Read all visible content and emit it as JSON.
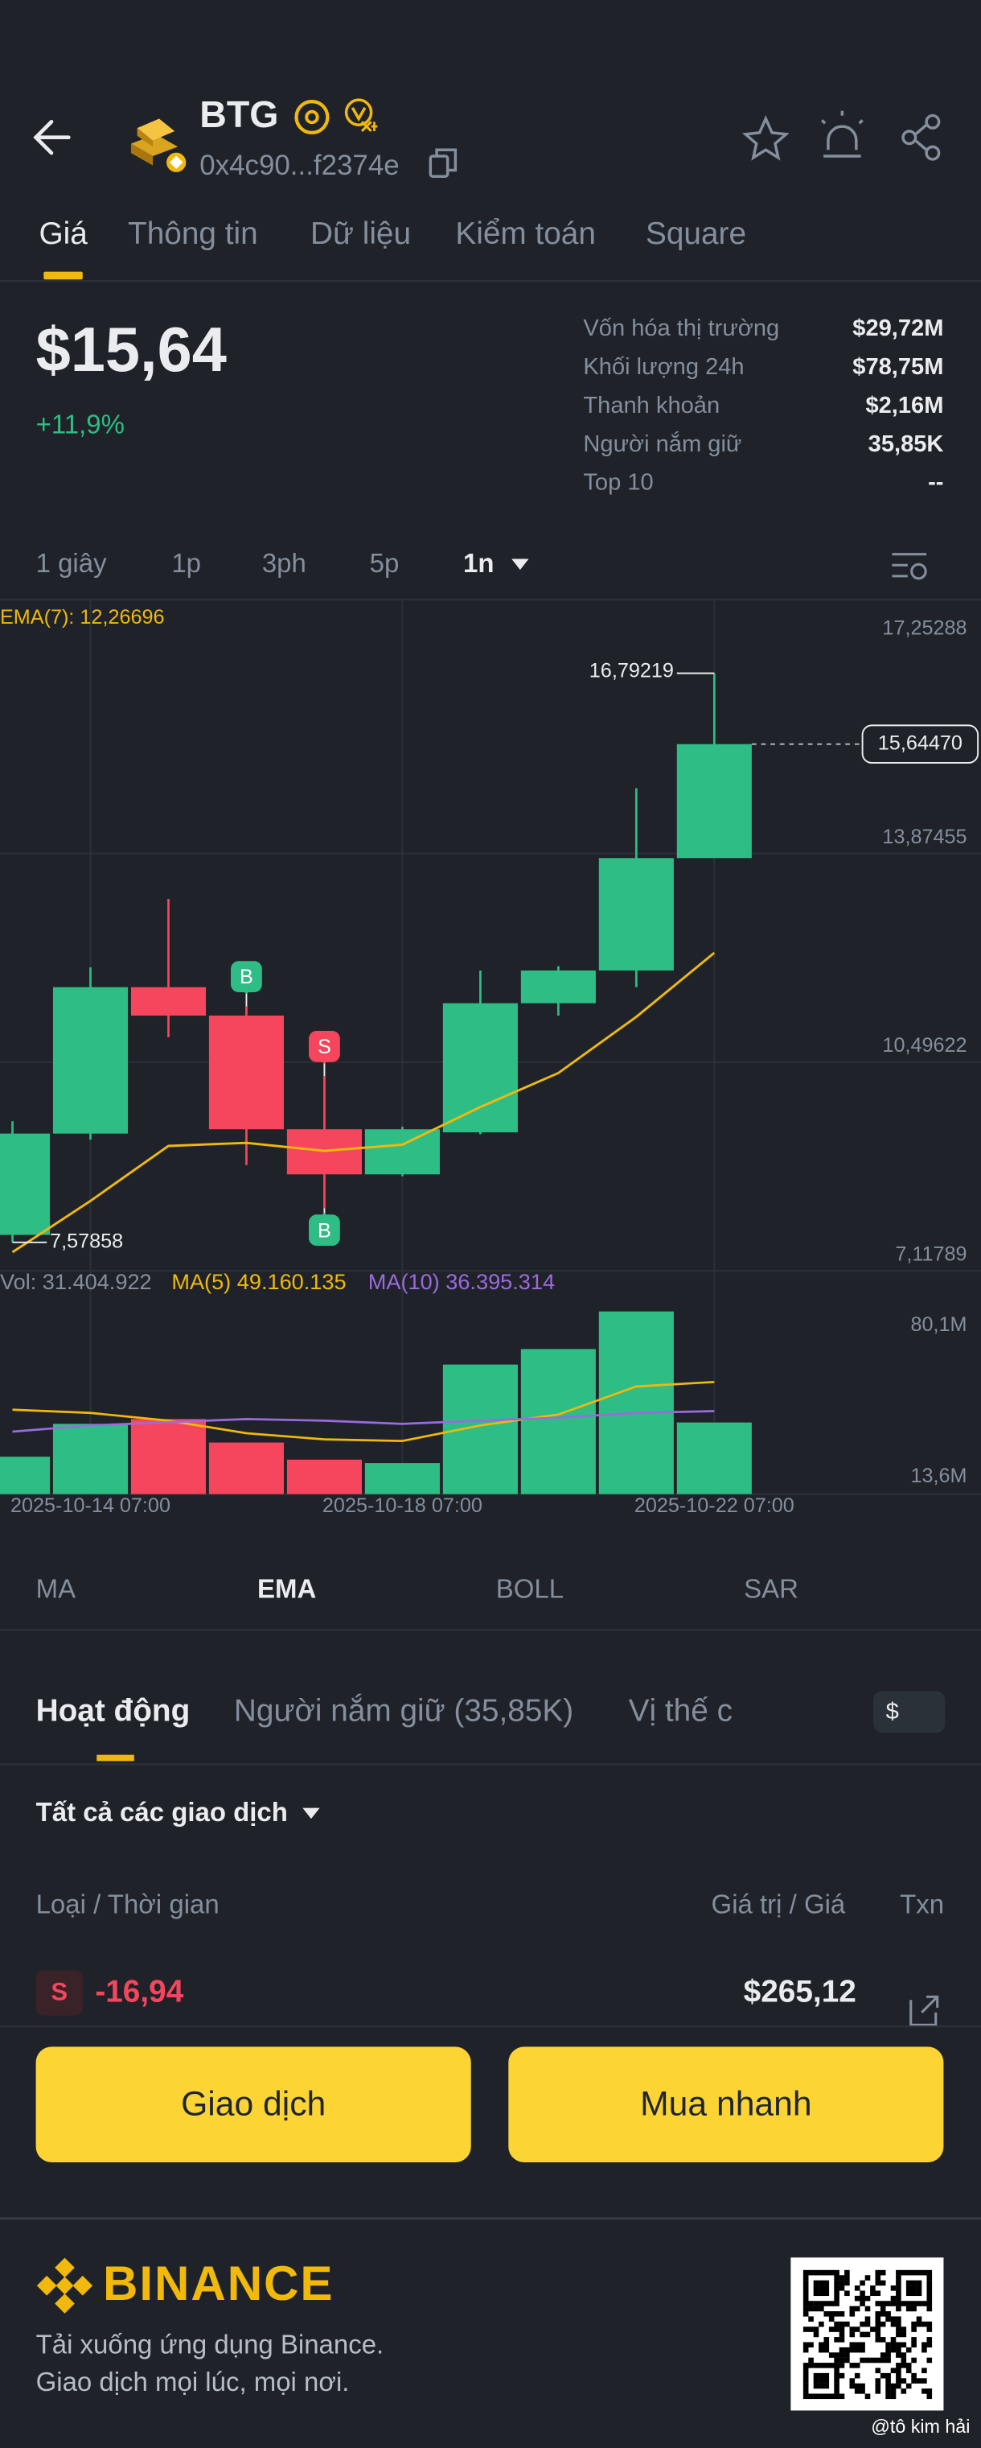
{
  "header": {
    "symbol": "BTG",
    "address": "0x4c90...f2374e"
  },
  "tabs": [
    "Giá",
    "Thông tin",
    "Dữ liệu",
    "Kiểm toán",
    "Square"
  ],
  "price": {
    "value": "$15,64",
    "change": "+11,9%"
  },
  "stats": [
    {
      "label": "Vốn hóa thị trường",
      "value": "$29,72M"
    },
    {
      "label": "Khối lượng 24h",
      "value": "$78,75M"
    },
    {
      "label": "Thanh khoản",
      "value": "$2,16M"
    },
    {
      "label": "Người nắm giữ",
      "value": "35,85K"
    },
    {
      "label": "Top 10",
      "value": "--"
    }
  ],
  "intervals": [
    "1 giây",
    "1p",
    "3ph",
    "5p",
    "1n"
  ],
  "chart_data": {
    "type": "candlestick",
    "categories": [
      null,
      "2025-10-14 07:00",
      null,
      null,
      null,
      "2025-10-18 07:00",
      null,
      null,
      null,
      "2025-10-22 07:00"
    ],
    "open": [
      7.7,
      9.34,
      11.71,
      11.25,
      9.41,
      8.68,
      9.36,
      11.45,
      11.98,
      13.8
    ],
    "high": [
      9.54,
      12.03,
      13.14,
      11.4,
      10.27,
      9.45,
      11.98,
      12.05,
      14.93,
      16.79219
    ],
    "low": [
      7.57858,
      9.24,
      10.9,
      8.83,
      8.13,
      8.65,
      9.33,
      11.25,
      11.71,
      13.8
    ],
    "close": [
      9.34,
      11.71,
      11.25,
      9.41,
      8.68,
      9.41,
      11.45,
      11.98,
      13.8,
      15.6447
    ],
    "up_color": "#2ebd85",
    "down_color": "#f6465d",
    "ema": {
      "name": "EMA(7): 12,26696",
      "color": "#f0b90b",
      "values": [
        7.42,
        8.25,
        9.14,
        9.19,
        9.06,
        9.16,
        9.77,
        10.32,
        11.23,
        12.26696
      ]
    },
    "ylim": [
      7.11789,
      17.25288
    ],
    "yticks": [
      {
        "value": 17.25288,
        "label": "17,25288"
      },
      {
        "value": 13.87455,
        "label": "13,87455"
      },
      {
        "value": 10.49622,
        "label": "10,49622"
      },
      {
        "value": 7.11789,
        "label": "7,11789"
      }
    ],
    "last_price": {
      "value": 15.6447,
      "label": "15,64470"
    },
    "high_label": {
      "value": 16.79219,
      "label": "16,79219"
    },
    "low_label": {
      "value": 7.57858,
      "label": "7,57858"
    },
    "markers": [
      {
        "label": "S",
        "index": 4,
        "color": "#f6465d"
      },
      {
        "label": "B",
        "index": 3,
        "color": "#2ebd85"
      },
      {
        "label": "B",
        "index": 4,
        "color": "#2ebd85"
      }
    ],
    "volume": {
      "legend": "Vol: 31.404.922",
      "values": [
        16.4,
        30.8,
        32.9,
        22.6,
        15.1,
        13.6,
        56.8,
        63.6,
        80.1,
        31.4
      ],
      "ylim": [
        0,
        80.1
      ],
      "yticks": [
        {
          "value": 80.1,
          "label": "80,1M"
        },
        {
          "value": 13.6,
          "label": "13,6M"
        }
      ],
      "ma": [
        {
          "name": "MA(5) 49.160.135",
          "color": "#f0b90b",
          "values": [
            37.0,
            35.6,
            32.2,
            26.7,
            24.0,
            23.3,
            30.1,
            34.9,
            47.2,
            49.16
          ]
        },
        {
          "name": "MA(10) 36.395.314",
          "color": "#9c6ade",
          "values": [
            27.4,
            30.1,
            31.5,
            32.9,
            32.2,
            30.8,
            32.2,
            33.5,
            35.6,
            36.4
          ]
        }
      ]
    }
  },
  "indicators": [
    "MA",
    "EMA",
    "BOLL",
    "SAR"
  ],
  "activity": {
    "tabs": [
      "Hoạt động",
      "Người nắm giữ (35,85K)",
      "Vị thế c"
    ],
    "currency": "$",
    "filter": "Tất cả các giao dịch",
    "columns": [
      "Loại / Thời gian",
      "Giá trị / Giá",
      "Txn"
    ],
    "rows": [
      {
        "type": "S",
        "amount": "-16,94",
        "value": "$265,12"
      }
    ]
  },
  "buttons": [
    "Giao dịch",
    "Mua nhanh"
  ],
  "footer": {
    "brand": "BINANCE",
    "lines": [
      "Tải xuống ứng dụng Binance.",
      "Giao dịch mọi lúc, mọi nơi."
    ],
    "watermark": "@tô kim hải"
  }
}
